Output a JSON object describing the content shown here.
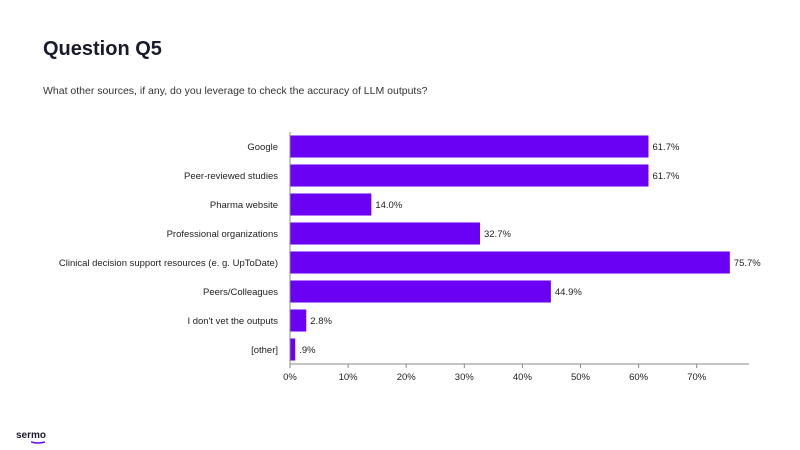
{
  "page": {
    "title": "Question Q5",
    "subtitle": "What other sources, if any, do you leverage to check the accuracy of LLM outputs?",
    "logo_text": "sermo",
    "bar_color": "#6a00f4",
    "logo_accent": "#6a00f4"
  },
  "chart_data": {
    "type": "bar",
    "orientation": "horizontal",
    "categories": [
      "Google",
      "Peer-reviewed studies",
      "Pharma website",
      "Professional organizations",
      "Clinical decision support resources (e. g. UpToDate)",
      "Peers/Colleagues",
      "I don't vet the outputs",
      "[other]"
    ],
    "values": [
      61.7,
      61.7,
      14.0,
      32.7,
      75.7,
      44.9,
      2.8,
      0.9
    ],
    "value_labels": [
      "61.7%",
      "61.7%",
      "14.0%",
      "32.7%",
      "75.7%",
      "44.9%",
      "2.8%",
      ".9%"
    ],
    "xlim": [
      0,
      79
    ],
    "xticks": [
      0,
      10,
      20,
      30,
      40,
      50,
      60,
      70
    ],
    "xtick_labels": [
      "0%",
      "10%",
      "20%",
      "30%",
      "40%",
      "50%",
      "60%",
      "70%"
    ],
    "grid": false,
    "legend": "none"
  }
}
